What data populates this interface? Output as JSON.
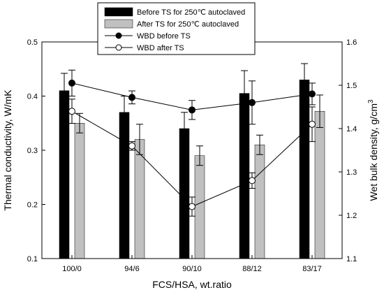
{
  "chart_data": {
    "type": "bar",
    "categories": [
      "100/0",
      "94/6",
      "90/10",
      "88/12",
      "83/17"
    ],
    "xlabel": "FCS/HSA, wt.ratio",
    "ylabel": "Thermal conductivity, W/mK",
    "ylabel_right_main": "Wet bulk density, g/cm",
    "ylabel_right_sup": "3",
    "ylim": [
      0.1,
      0.5
    ],
    "ylim_right": [
      1.1,
      1.6
    ],
    "yticks": [
      "0.1",
      "0.2",
      "0.3",
      "0.4",
      "0.5"
    ],
    "yticks_right": [
      "1.1",
      "1.2",
      "1.3",
      "1.4",
      "1.5",
      "1.6"
    ],
    "grid": false,
    "legend_position": "top-center",
    "series": [
      {
        "name": "Before TS for 250℃ autoclaved",
        "kind": "bar",
        "axis": "left",
        "color": "#000000",
        "values": [
          0.41,
          0.37,
          0.34,
          0.405,
          0.43
        ],
        "errors": [
          0.032,
          0.03,
          0.03,
          0.042,
          0.03
        ]
      },
      {
        "name": "After TS for 250℃ autoclaved",
        "kind": "bar",
        "axis": "left",
        "color": "#c0c0c0",
        "values": [
          0.35,
          0.32,
          0.29,
          0.31,
          0.372
        ],
        "errors": [
          0.018,
          0.028,
          0.018,
          0.018,
          0.03
        ]
      },
      {
        "name": "WBD before TS",
        "kind": "line",
        "axis": "right",
        "marker": "filled-circle",
        "color": "#000000",
        "values": [
          1.505,
          1.472,
          1.443,
          1.46,
          1.48
        ],
        "errors": [
          0.03,
          0.015,
          0.022,
          0.05,
          0.025
        ]
      },
      {
        "name": "WBD after TS",
        "kind": "line",
        "axis": "right",
        "marker": "open-circle",
        "color": "#000000",
        "values": [
          1.44,
          1.36,
          1.22,
          1.28,
          1.41
        ],
        "errors": [
          0.028,
          0.01,
          0.022,
          0.018,
          0.04
        ]
      }
    ]
  }
}
